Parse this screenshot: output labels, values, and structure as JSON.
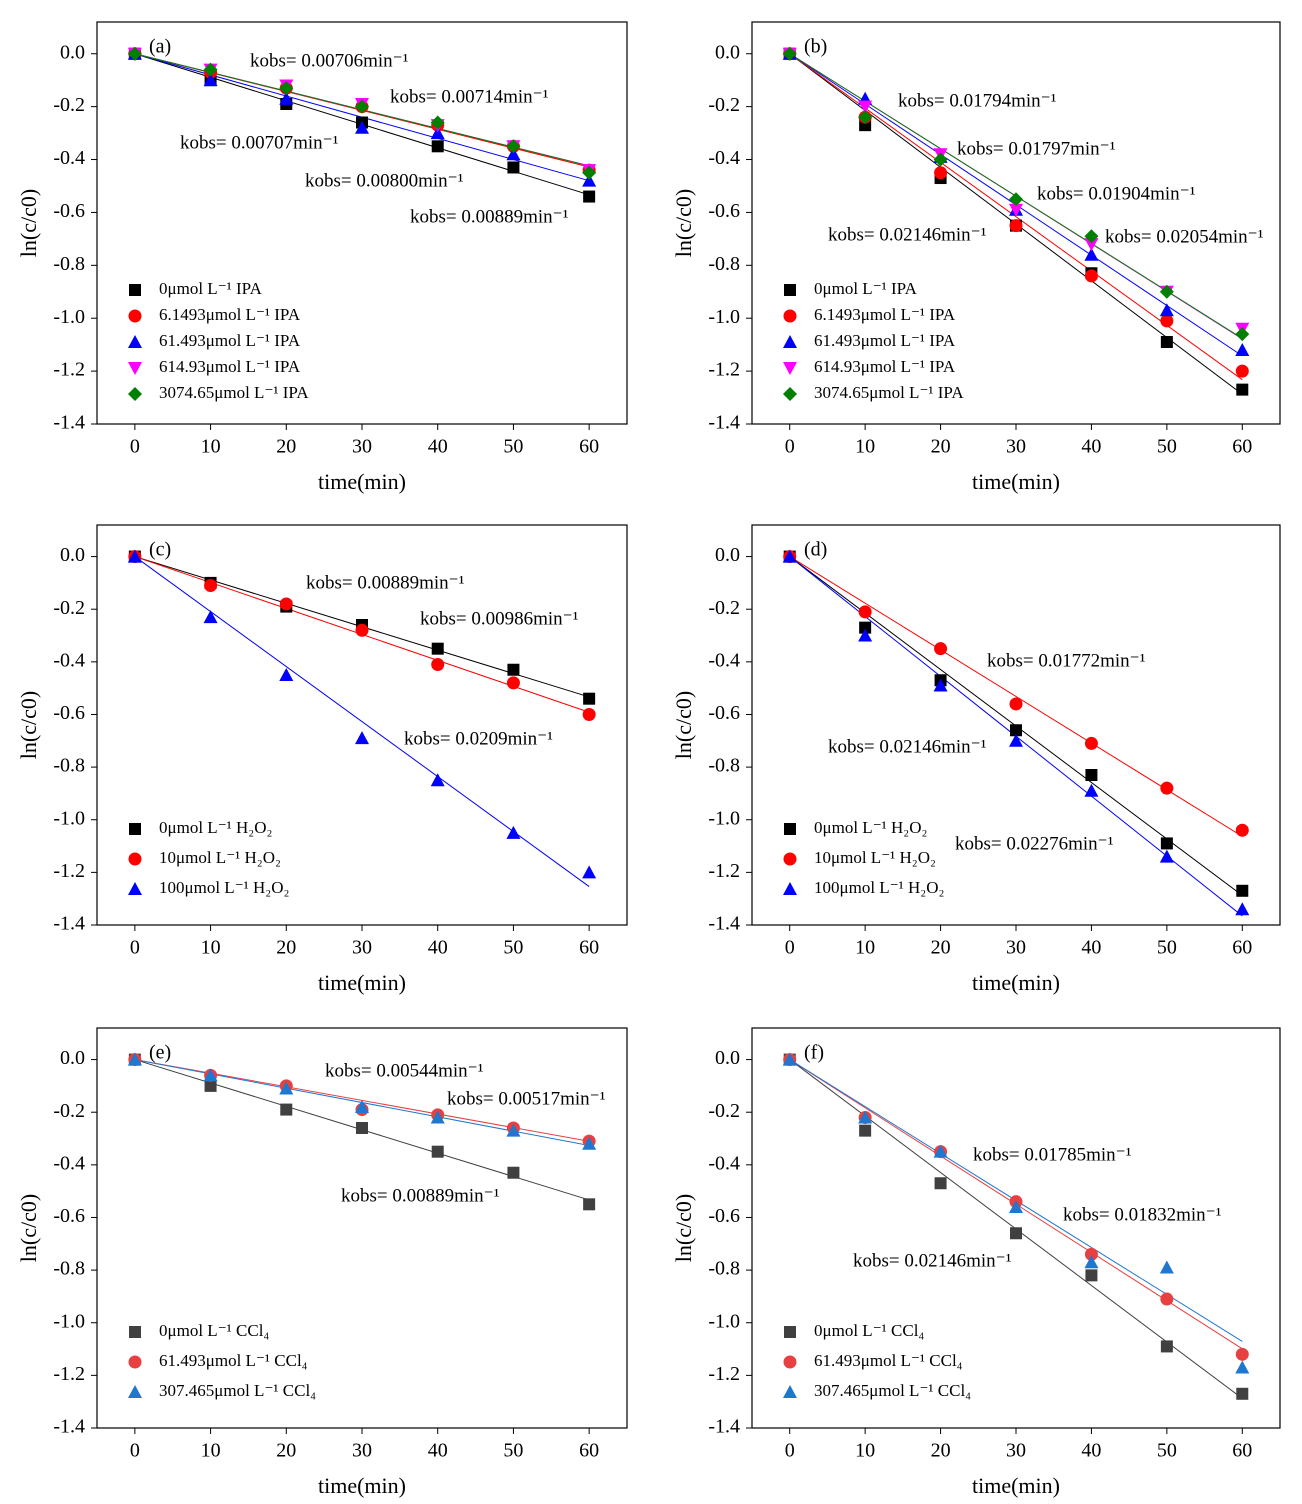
{
  "chart_data": [
    {
      "type": "scatter",
      "label": "(a)",
      "xlabel": "time(min)",
      "ylabel": "ln(c/c0)",
      "x": [
        0,
        10,
        20,
        30,
        40,
        50,
        60
      ],
      "xlim": [
        -5,
        65
      ],
      "ylim": [
        -1.4,
        0.12
      ],
      "xticks": [
        0,
        10,
        20,
        30,
        40,
        50,
        60
      ],
      "yticks": [
        {
          "value": 0,
          "label": "0.0"
        },
        -0.2,
        -0.4,
        -0.6,
        -0.8,
        {
          "value": -1,
          "label": "-1.0"
        },
        -1.2,
        -1.4
      ],
      "series": [
        {
          "name": "0μmol L⁻¹ IPA",
          "color": "#000000",
          "marker": "square",
          "kobs": 0.00889,
          "values": [
            0,
            -0.1,
            -0.19,
            -0.26,
            -0.35,
            -0.43,
            -0.54
          ]
        },
        {
          "name": "6.1493μmol L⁻¹ IPA",
          "color": "#ff0000",
          "marker": "circle",
          "kobs": 0.00714,
          "values": [
            0,
            -0.07,
            -0.13,
            -0.2,
            -0.27,
            -0.35,
            -0.44
          ]
        },
        {
          "name": "61.493μmol L⁻¹ IPA",
          "color": "#0000ff",
          "marker": "triangle",
          "kobs": 0.008,
          "values": [
            0,
            -0.1,
            -0.17,
            -0.28,
            -0.3,
            -0.38,
            -0.48
          ]
        },
        {
          "name": "614.93μmol L⁻¹ IPA",
          "color": "#ff00ff",
          "marker": "triangle-down",
          "kobs": 0.00706,
          "values": [
            0,
            -0.06,
            -0.12,
            -0.19,
            -0.27,
            -0.35,
            -0.44
          ]
        },
        {
          "name": "3074.65μmol L⁻¹ IPA",
          "color": "#008000",
          "marker": "diamond",
          "kobs": 0.00707,
          "values": [
            0,
            -0.06,
            -0.13,
            -0.2,
            -0.26,
            -0.35,
            -0.45
          ]
        }
      ],
      "annotations": [
        {
          "text": "kobs= 0.00706min⁻¹",
          "color": "#ff00ff"
        },
        {
          "text": "kobs= 0.00714min⁻¹",
          "color": "#ff0000"
        },
        {
          "text": "kobs= 0.00707min⁻¹",
          "color": "#008000"
        },
        {
          "text": "kobs= 0.00800min⁻¹",
          "color": "#0000ff"
        },
        {
          "text": "kobs= 0.00889min⁻¹",
          "color": "#000000"
        }
      ]
    },
    {
      "type": "scatter",
      "label": "(b)",
      "xlabel": "time(min)",
      "ylabel": "ln(c/c0)",
      "x": [
        0,
        10,
        20,
        30,
        40,
        50,
        60
      ],
      "xlim": [
        -5,
        65
      ],
      "ylim": [
        -1.4,
        0.12
      ],
      "xticks": [
        0,
        10,
        20,
        30,
        40,
        50,
        60
      ],
      "yticks": [
        {
          "value": 0,
          "label": "0.0"
        },
        -0.2,
        -0.4,
        -0.6,
        -0.8,
        {
          "value": -1,
          "label": "-1.0"
        },
        -1.2,
        -1.4
      ],
      "series": [
        {
          "name": "0μmol L⁻¹ IPA",
          "color": "#000000",
          "marker": "square",
          "kobs": 0.02146,
          "values": [
            0,
            -0.27,
            -0.47,
            -0.65,
            -0.83,
            -1.09,
            -1.27
          ]
        },
        {
          "name": "6.1493μmol L⁻¹ IPA",
          "color": "#ff0000",
          "marker": "circle",
          "kobs": 0.02054,
          "values": [
            0,
            -0.24,
            -0.45,
            -0.65,
            -0.84,
            -1.01,
            -1.2
          ]
        },
        {
          "name": "61.493μmol L⁻¹ IPA",
          "color": "#0000ff",
          "marker": "triangle",
          "kobs": 0.01904,
          "values": [
            0,
            -0.17,
            -0.39,
            -0.59,
            -0.76,
            -0.97,
            -1.12
          ]
        },
        {
          "name": "614.93μmol L⁻¹ IPA",
          "color": "#ff00ff",
          "marker": "triangle-down",
          "kobs": 0.01797,
          "values": [
            0,
            -0.2,
            -0.38,
            -0.59,
            -0.72,
            -0.9,
            -1.04
          ]
        },
        {
          "name": "3074.65μmol L⁻¹ IPA",
          "color": "#008000",
          "marker": "diamond",
          "kobs": 0.01794,
          "values": [
            0,
            -0.24,
            -0.4,
            -0.55,
            -0.69,
            -0.9,
            -1.06
          ]
        }
      ],
      "annotations": [
        {
          "text": "kobs= 0.01794min⁻¹",
          "color": "#008000"
        },
        {
          "text": "kobs= 0.01797min⁻¹",
          "color": "#ff00ff"
        },
        {
          "text": "kobs= 0.01904min⁻¹",
          "color": "#0000ff"
        },
        {
          "text": "kobs= 0.02054min⁻¹",
          "color": "#ff0000"
        },
        {
          "text": "kobs= 0.02146min⁻¹",
          "color": "#000000"
        }
      ]
    },
    {
      "type": "scatter",
      "label": "(c)",
      "xlabel": "time(min)",
      "ylabel": "ln(c/c0)",
      "x": [
        0,
        10,
        20,
        30,
        40,
        50,
        60
      ],
      "xlim": [
        -5,
        65
      ],
      "ylim": [
        -1.4,
        0.12
      ],
      "xticks": [
        0,
        10,
        20,
        30,
        40,
        50,
        60
      ],
      "yticks": [
        {
          "value": 0,
          "label": "0.0"
        },
        -0.2,
        -0.4,
        -0.6,
        -0.8,
        {
          "value": -1,
          "label": "-1.0"
        },
        -1.2,
        -1.4
      ],
      "series": [
        {
          "name": "0μmol L⁻¹ H₂O₂",
          "color": "#000000",
          "marker": "square",
          "kobs": 0.00889,
          "values": [
            0,
            -0.1,
            -0.19,
            -0.26,
            -0.35,
            -0.43,
            -0.54
          ]
        },
        {
          "name": "10μmol L⁻¹ H₂O₂",
          "color": "#ff0000",
          "marker": "circle",
          "kobs": 0.00986,
          "values": [
            0,
            -0.11,
            -0.18,
            -0.28,
            -0.41,
            -0.48,
            -0.6
          ]
        },
        {
          "name": "100μmol L⁻¹ H₂O₂",
          "color": "#0000ff",
          "marker": "triangle",
          "kobs": 0.0209,
          "values": [
            0,
            -0.23,
            -0.45,
            -0.69,
            -0.85,
            -1.05,
            -1.2
          ]
        }
      ],
      "annotations": [
        {
          "text": "kobs= 0.00889min⁻¹",
          "color": "#000000"
        },
        {
          "text": "kobs= 0.00986min⁻¹",
          "color": "#ff0000"
        },
        {
          "text": "kobs= 0.0209min⁻¹",
          "color": "#0000ff"
        }
      ]
    },
    {
      "type": "scatter",
      "label": "(d)",
      "xlabel": "time(min)",
      "ylabel": "ln(c/c0)",
      "x": [
        0,
        10,
        20,
        30,
        40,
        50,
        60
      ],
      "xlim": [
        -5,
        65
      ],
      "ylim": [
        -1.4,
        0.12
      ],
      "xticks": [
        0,
        10,
        20,
        30,
        40,
        50,
        60
      ],
      "yticks": [
        {
          "value": 0,
          "label": "0.0"
        },
        -0.2,
        -0.4,
        -0.6,
        -0.8,
        {
          "value": -1,
          "label": "-1.0"
        },
        -1.2,
        -1.4
      ],
      "series": [
        {
          "name": "0μmol L⁻¹ H₂O₂",
          "color": "#000000",
          "marker": "square",
          "kobs": 0.02146,
          "values": [
            0,
            -0.27,
            -0.47,
            -0.66,
            -0.83,
            -1.09,
            -1.27
          ]
        },
        {
          "name": "10μmol L⁻¹ H₂O₂",
          "color": "#ff0000",
          "marker": "circle",
          "kobs": 0.01772,
          "values": [
            0,
            -0.21,
            -0.35,
            -0.56,
            -0.71,
            -0.88,
            -1.04
          ]
        },
        {
          "name": "100μmol L⁻¹ H₂O₂",
          "color": "#0000ff",
          "marker": "triangle",
          "kobs": 0.02276,
          "values": [
            0,
            -0.3,
            -0.49,
            -0.7,
            -0.89,
            -1.14,
            -1.34
          ]
        }
      ],
      "annotations": [
        {
          "text": "kobs= 0.01772min⁻¹",
          "color": "#ff0000"
        },
        {
          "text": "kobs= 0.02146min⁻¹",
          "color": "#000000"
        },
        {
          "text": "kobs= 0.02276min⁻¹",
          "color": "#0000ff"
        }
      ]
    },
    {
      "type": "scatter",
      "label": "(e)",
      "xlabel": "time(min)",
      "ylabel": "ln(c/c0)",
      "x": [
        0,
        10,
        20,
        30,
        40,
        50,
        60
      ],
      "xlim": [
        -5,
        65
      ],
      "ylim": [
        -1.4,
        0.12
      ],
      "xticks": [
        0,
        10,
        20,
        30,
        40,
        50,
        60
      ],
      "yticks": [
        {
          "value": 0,
          "label": "0.0"
        },
        -0.2,
        -0.4,
        -0.6,
        -0.8,
        {
          "value": -1,
          "label": "-1.0"
        },
        -1.2,
        -1.4
      ],
      "series": [
        {
          "name": "0μmol L⁻¹ CCl₄",
          "color": "#404040",
          "marker": "square",
          "kobs": 0.00889,
          "values": [
            0,
            -0.1,
            -0.19,
            -0.26,
            -0.35,
            -0.43,
            -0.55
          ]
        },
        {
          "name": "61.493μmol L⁻¹ CCl₄",
          "color": "#e84040",
          "marker": "circle",
          "kobs": 0.00517,
          "values": [
            0,
            -0.06,
            -0.1,
            -0.19,
            -0.21,
            -0.26,
            -0.31
          ]
        },
        {
          "name": "307.465μmol L⁻¹ CCl₄",
          "color": "#1f77d0",
          "marker": "triangle",
          "kobs": 0.00544,
          "values": [
            0,
            -0.06,
            -0.11,
            -0.18,
            -0.22,
            -0.27,
            -0.32
          ]
        }
      ],
      "annotations": [
        {
          "text": "kobs= 0.00544min⁻¹",
          "color": "#0000ff"
        },
        {
          "text": "kobs= 0.00517min⁻¹",
          "color": "#ff0000"
        },
        {
          "text": "kobs= 0.00889min⁻¹",
          "color": "#000000"
        }
      ]
    },
    {
      "type": "scatter",
      "label": "(f)",
      "xlabel": "time(min)",
      "ylabel": "ln(c/c0)",
      "x": [
        0,
        10,
        20,
        30,
        40,
        50,
        60
      ],
      "xlim": [
        -5,
        65
      ],
      "ylim": [
        -1.4,
        0.12
      ],
      "xticks": [
        0,
        10,
        20,
        30,
        40,
        50,
        60
      ],
      "yticks": [
        {
          "value": 0,
          "label": "0.0"
        },
        -0.2,
        -0.4,
        -0.6,
        -0.8,
        {
          "value": -1,
          "label": "-1.0"
        },
        -1.2,
        -1.4
      ],
      "series": [
        {
          "name": "0μmol L⁻¹ CCl₄",
          "color": "#404040",
          "marker": "square",
          "kobs": 0.02146,
          "values": [
            0,
            -0.27,
            -0.47,
            -0.66,
            -0.82,
            -1.09,
            -1.27
          ]
        },
        {
          "name": "61.493μmol L⁻¹ CCl₄",
          "color": "#e84040",
          "marker": "circle",
          "kobs": 0.01832,
          "values": [
            0,
            -0.22,
            -0.35,
            -0.54,
            -0.74,
            -0.91,
            -1.12
          ]
        },
        {
          "name": "307.465μmol L⁻¹ CCl₄",
          "color": "#1f77d0",
          "marker": "triangle",
          "kobs": 0.01785,
          "values": [
            0,
            -0.22,
            -0.35,
            -0.56,
            -0.77,
            -0.79,
            -1.17
          ]
        }
      ],
      "annotations": [
        {
          "text": "kobs= 0.01785min⁻¹",
          "color": "#0000ff"
        },
        {
          "text": "kobs= 0.01832min⁻¹",
          "color": "#ff0000"
        },
        {
          "text": "kobs= 0.02146min⁻¹",
          "color": "#000000"
        }
      ]
    }
  ]
}
